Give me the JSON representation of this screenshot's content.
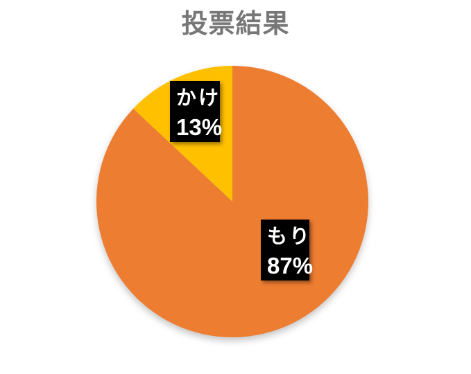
{
  "chart_data": {
    "type": "pie",
    "title": "投票結果",
    "title_color": "#777777",
    "categories": [
      "もり",
      "かけ"
    ],
    "values": [
      87,
      13
    ],
    "slices": [
      {
        "label": "もり",
        "value": 87,
        "pct_label": "87%",
        "color": "#ED7D31"
      },
      {
        "label": "かけ",
        "value": 13,
        "pct_label": "13%",
        "color": "#FFC000"
      }
    ],
    "start_angle_deg": 0,
    "direction": "clockwise",
    "legend_position": "none",
    "data_label_bg": "#000000",
    "data_label_text_color": "#FFFFFF",
    "background": "#FFFFFF"
  }
}
